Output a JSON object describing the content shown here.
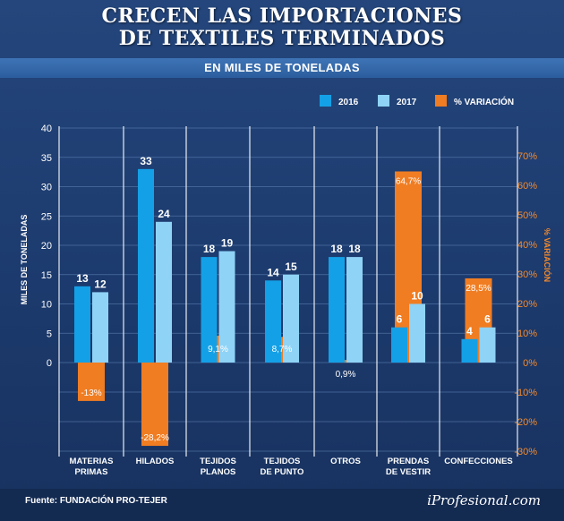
{
  "title_line1": "CRECEN LAS IMPORTACIONES",
  "title_line2": "DE TEXTILES TERMINADOS",
  "subtitle": "EN MILES DE TONELADAS",
  "source": "Fuente: FUNDACIÓN PRO-TEJER",
  "brand": "iProfesional.com",
  "colors": {
    "series_2016": "#14a0e6",
    "series_2017": "#8fd3f7",
    "variation": "#f07d22",
    "left_axis_text": "#ffffff",
    "right_axis_text": "#f58a2b"
  },
  "chart_data": {
    "type": "bar",
    "categories": [
      "MATERIAS\nPRIMAS",
      "HILADOS",
      "TEJIDOS\nPLANOS",
      "TEJIDOS\nDE PUNTO",
      "OTROS",
      "PRENDAS\nDE VESTIR",
      "CONFECCIONES"
    ],
    "series": [
      {
        "name": "2016",
        "axis": "left",
        "values": [
          13,
          33,
          18,
          14,
          18,
          6,
          4
        ],
        "labels": [
          "13",
          "33",
          "18",
          "14",
          "18",
          "6",
          "4"
        ]
      },
      {
        "name": "2017",
        "axis": "left",
        "values": [
          12,
          24,
          19,
          15,
          18,
          10,
          6
        ],
        "labels": [
          "12",
          "24",
          "19",
          "15",
          "18",
          "10",
          "6"
        ]
      },
      {
        "name": "% VARIACIÓN",
        "axis": "right",
        "values": [
          -13,
          -28.2,
          9.1,
          8.7,
          0.9,
          64.7,
          28.5
        ],
        "labels": [
          "-13%",
          "-28,2%",
          "9,1%",
          "8,7%",
          "0,9%",
          "64,7%",
          "28,5%"
        ]
      }
    ],
    "ylabel": "MILES DE TONELADAS",
    "y2label": "% VARIACIÓN",
    "ylim": [
      0,
      40
    ],
    "yticks": [
      "0",
      "5",
      "10",
      "15",
      "20",
      "25",
      "30",
      "35",
      "40"
    ],
    "y2lim": [
      -30,
      70
    ],
    "y2ticks": [
      "-30%",
      "-20%",
      "-10%",
      "0%",
      "10%",
      "20%",
      "30%",
      "40%",
      "50%",
      "60%",
      "70%"
    ],
    "legend_position": "top-right",
    "grid": true
  }
}
